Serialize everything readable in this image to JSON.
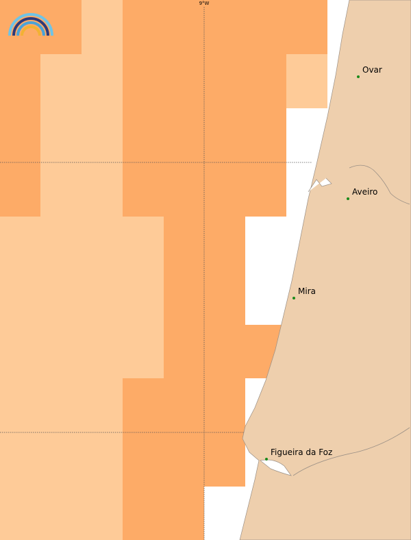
{
  "map": {
    "meridian_label": "9°W",
    "places": [
      "Ovar",
      "Aveiro",
      "Mira",
      "Figueira da Foz"
    ]
  }
}
